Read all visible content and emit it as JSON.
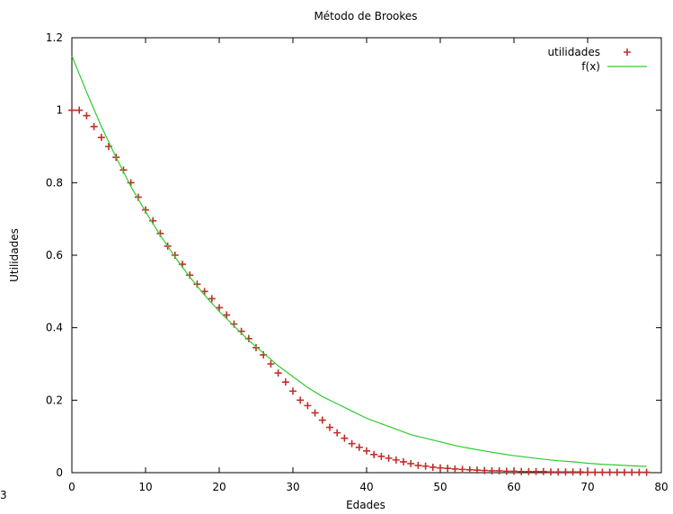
{
  "edge_glyph": "3",
  "chart_data": {
    "type": "scatter",
    "title": "Método de Brookes",
    "xlabel": "Edades",
    "ylabel": "Utilidades",
    "xlim": [
      0,
      80
    ],
    "ylim": [
      0,
      1.2
    ],
    "xticks": [
      0,
      10,
      20,
      30,
      40,
      50,
      60,
      70,
      80
    ],
    "yticks": [
      0,
      0.2,
      0.4,
      0.6,
      0.8,
      1,
      1.2
    ],
    "x_tick_labels": [
      "0",
      "10",
      "20",
      "30",
      "40",
      "50",
      "60",
      "70",
      "80"
    ],
    "y_tick_labels": [
      "0",
      "0.2",
      "0.4",
      "0.6",
      "0.8",
      "1",
      "1.2"
    ],
    "grid": false,
    "legend_position": "top-right",
    "series": [
      {
        "name": "utilidades",
        "style": "points",
        "marker": "plus",
        "color": "#c0302b",
        "x": [
          0,
          1,
          2,
          3,
          4,
          5,
          6,
          7,
          8,
          9,
          10,
          11,
          12,
          13,
          14,
          15,
          16,
          17,
          18,
          19,
          20,
          21,
          22,
          23,
          24,
          25,
          26,
          27,
          28,
          29,
          30,
          31,
          32,
          33,
          34,
          35,
          36,
          37,
          38,
          39,
          40,
          41,
          42,
          43,
          44,
          45,
          46,
          47,
          48,
          49,
          50,
          51,
          52,
          53,
          54,
          55,
          56,
          57,
          58,
          59,
          60,
          61,
          62,
          63,
          64,
          65,
          66,
          67,
          68,
          69,
          70,
          71,
          72,
          73,
          74,
          75,
          76,
          77,
          78
        ],
        "y": [
          1.0,
          1.0,
          0.985,
          0.955,
          0.925,
          0.9,
          0.87,
          0.835,
          0.8,
          0.76,
          0.725,
          0.695,
          0.66,
          0.625,
          0.6,
          0.575,
          0.545,
          0.52,
          0.5,
          0.48,
          0.455,
          0.435,
          0.41,
          0.39,
          0.37,
          0.345,
          0.325,
          0.3,
          0.275,
          0.25,
          0.225,
          0.2,
          0.185,
          0.165,
          0.145,
          0.125,
          0.11,
          0.095,
          0.08,
          0.07,
          0.06,
          0.05,
          0.045,
          0.04,
          0.035,
          0.03,
          0.025,
          0.02,
          0.018,
          0.015,
          0.013,
          0.012,
          0.01,
          0.009,
          0.008,
          0.007,
          0.006,
          0.005,
          0.005,
          0.004,
          0.004,
          0.003,
          0.003,
          0.003,
          0.003,
          0.002,
          0.002,
          0.002,
          0.002,
          0.002,
          0.001,
          0.001,
          0.001,
          0.001,
          0.001,
          0.001,
          0.001,
          0.001,
          0.001
        ]
      },
      {
        "name": "f(x)",
        "style": "line",
        "color": "#2ecc2e",
        "x": [
          0,
          2,
          4,
          6,
          8,
          10,
          12,
          14,
          16,
          18,
          20,
          22,
          24,
          26,
          28,
          30,
          32,
          34,
          36,
          38,
          40,
          42,
          44,
          46,
          48,
          50,
          52,
          54,
          56,
          58,
          60,
          62,
          64,
          66,
          68,
          70,
          72,
          74,
          76,
          78
        ],
        "y": [
          1.15,
          1.05,
          0.955,
          0.87,
          0.79,
          0.72,
          0.655,
          0.595,
          0.54,
          0.49,
          0.445,
          0.405,
          0.365,
          0.33,
          0.295,
          0.265,
          0.235,
          0.21,
          0.19,
          0.17,
          0.15,
          0.135,
          0.12,
          0.105,
          0.095,
          0.085,
          0.075,
          0.067,
          0.06,
          0.053,
          0.047,
          0.042,
          0.037,
          0.033,
          0.03,
          0.026,
          0.023,
          0.021,
          0.019,
          0.017
        ]
      }
    ]
  }
}
